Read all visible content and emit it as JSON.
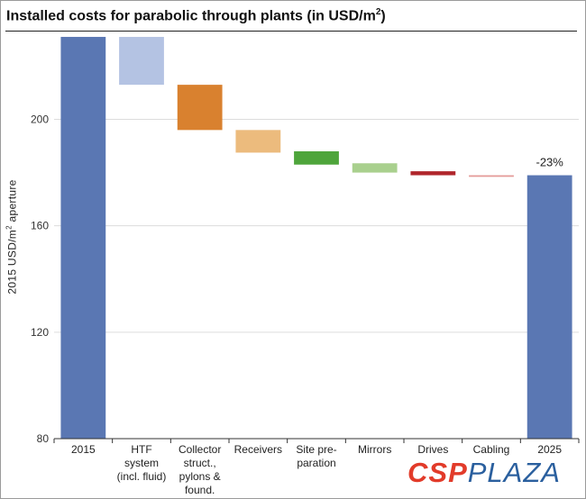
{
  "title_main": "Installed costs for parabolic through plants (in USD/m",
  "title_sup": "2",
  "title_end": ")",
  "ylabel_pre": "2015 USD/m",
  "ylabel_sup": "2",
  "ylabel_post": " aperture",
  "logo": {
    "part1": "CSP",
    "part2": "PLAZA"
  },
  "chart_data": {
    "type": "bar",
    "subtype": "waterfall",
    "ylim": [
      80,
      232
    ],
    "yticks": [
      80,
      120,
      160,
      200
    ],
    "grid": true,
    "categories": [
      [
        "2015"
      ],
      [
        "HTF",
        "system",
        "(incl. fluid)"
      ],
      [
        "Collector",
        "struct.,",
        "pylons &",
        "found."
      ],
      [
        "Receivers"
      ],
      [
        "Site pre-",
        "paration"
      ],
      [
        "Mirrors"
      ],
      [
        "Drives"
      ],
      [
        "Cabling"
      ],
      [
        "2025"
      ]
    ],
    "bars": [
      {
        "kind": "total",
        "value": 231,
        "color": "#5a77b3"
      },
      {
        "kind": "step",
        "from": 231,
        "to": 213,
        "color": "#b4c3e3"
      },
      {
        "kind": "step",
        "from": 213,
        "to": 196,
        "color": "#d9812f"
      },
      {
        "kind": "step",
        "from": 196,
        "to": 187.5,
        "color": "#ecbb7d"
      },
      {
        "kind": "step",
        "from": 188,
        "to": 183,
        "color": "#4ea53b"
      },
      {
        "kind": "step",
        "from": 183.5,
        "to": 180,
        "color": "#a9d08e"
      },
      {
        "kind": "step",
        "from": 180.5,
        "to": 179,
        "color": "#b0262c"
      },
      {
        "kind": "step",
        "from": 179,
        "to": 178.4,
        "color": "#e49a98"
      },
      {
        "kind": "total",
        "value": 179,
        "color": "#5a77b3"
      }
    ],
    "annotations": [
      {
        "bar": 8,
        "text": "-23%"
      }
    ]
  }
}
